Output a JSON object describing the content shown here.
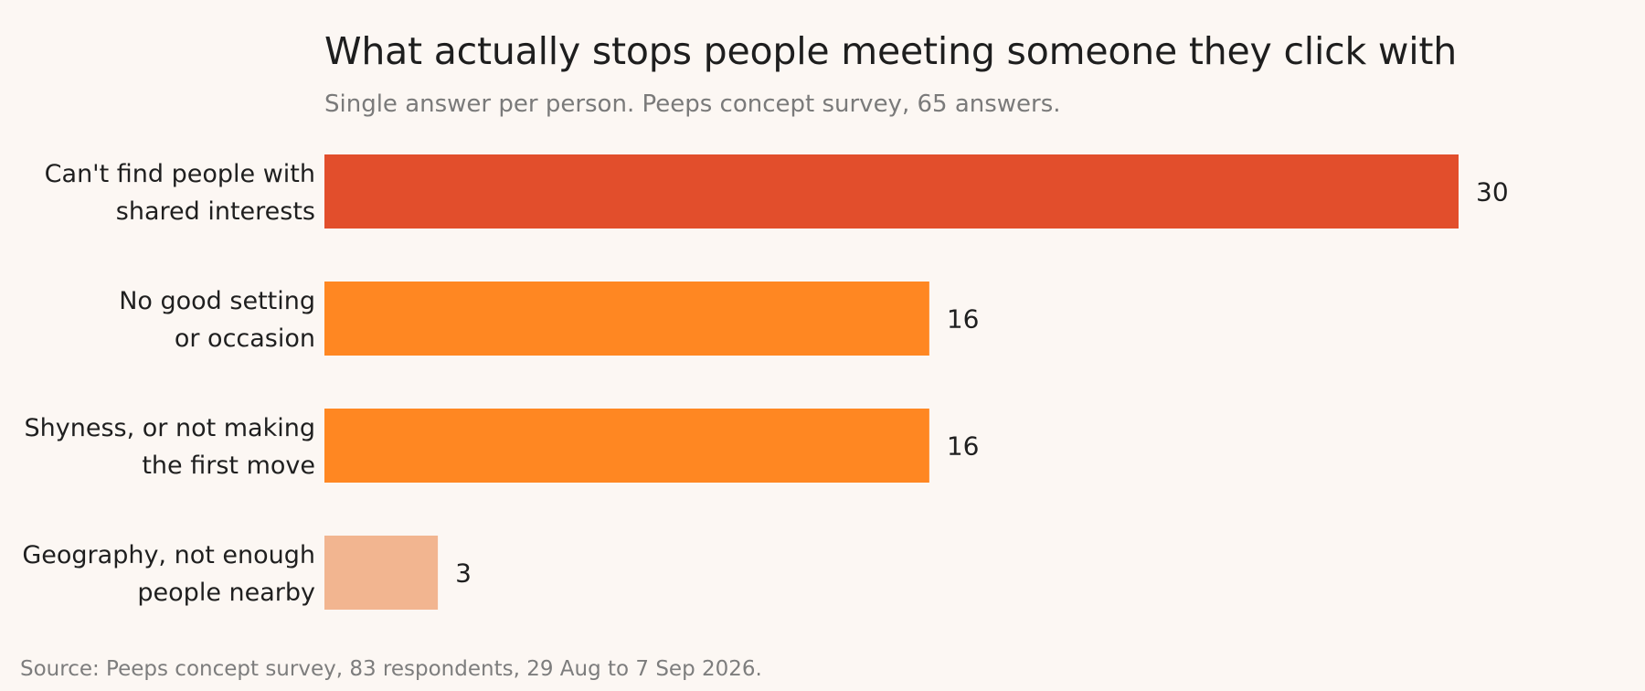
{
  "chart_data": {
    "type": "bar",
    "orientation": "horizontal",
    "title": "What actually stops people meeting someone they click with",
    "subtitle": "Single answer per person. Peeps concept survey, 65 answers.",
    "source": "Source: Peeps concept survey, 83 respondents, 29 Aug to 7 Sep 2026.",
    "categories": [
      [
        "Can't find people with",
        "shared interests"
      ],
      [
        "No good setting",
        "or occasion"
      ],
      [
        "Shyness, or not making",
        "the first move"
      ],
      [
        "Geography, not enough",
        "people nearby"
      ]
    ],
    "values": [
      30,
      16,
      16,
      3
    ],
    "colors": [
      "#e24e2c",
      "#ff8722",
      "#ff8722",
      "#f2b590"
    ],
    "xlim": [
      0,
      30
    ],
    "xlabel": "",
    "ylabel": "",
    "grid": false,
    "legend": "none"
  }
}
